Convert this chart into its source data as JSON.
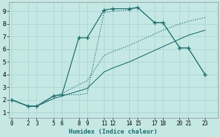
{
  "xlabel": "Humidex (Indice chaleur)",
  "bg_color": "#c5e8e5",
  "grid_color": "#a8d5d0",
  "line_color": "#1a6b6a",
  "xtick_vals": [
    0,
    2,
    3,
    5,
    6,
    8,
    9,
    11,
    12,
    14,
    15,
    17,
    18,
    20,
    21,
    23
  ],
  "ytick_vals": [
    1,
    2,
    3,
    4,
    5,
    6,
    7,
    8,
    9
  ],
  "xlim": [
    -0.3,
    24.5
  ],
  "ylim": [
    0.6,
    9.7
  ],
  "lines": [
    {
      "x": [
        0,
        2,
        3,
        5,
        6,
        8,
        9,
        11,
        12,
        14,
        15,
        17,
        18,
        20,
        21,
        23
      ],
      "y": [
        2.0,
        1.5,
        1.5,
        2.3,
        2.5,
        3.2,
        3.5,
        5.5,
        5.8,
        6.3,
        6.6,
        7.2,
        7.5,
        8.0,
        8.2,
        8.5
      ],
      "style": ":",
      "marker": null,
      "lw": 0.9,
      "ms": 0
    },
    {
      "x": [
        0,
        2,
        3,
        5,
        6,
        8,
        9,
        11,
        12,
        14,
        15,
        17,
        18,
        20,
        21,
        23
      ],
      "y": [
        2.0,
        1.5,
        1.5,
        2.1,
        2.3,
        2.7,
        2.9,
        4.2,
        4.5,
        5.0,
        5.3,
        5.9,
        6.2,
        6.8,
        7.1,
        7.5
      ],
      "style": "-",
      "marker": null,
      "lw": 0.8,
      "ms": 0
    },
    {
      "x": [
        0,
        2,
        3,
        5,
        6,
        8,
        9,
        11,
        12,
        14,
        15,
        17,
        18,
        20,
        21,
        23
      ],
      "y": [
        2.0,
        1.5,
        1.5,
        2.3,
        2.4,
        6.9,
        6.9,
        9.1,
        9.2,
        9.2,
        9.3,
        8.1,
        8.1,
        6.1,
        6.1,
        4.0
      ],
      "style": "-",
      "marker": "+",
      "lw": 0.9,
      "ms": 4
    },
    {
      "x": [
        0,
        2,
        3,
        5,
        6,
        8,
        9,
        11,
        12,
        14,
        15,
        17,
        18,
        20,
        21,
        23
      ],
      "y": [
        2.0,
        1.5,
        1.5,
        2.3,
        2.4,
        2.4,
        2.5,
        8.9,
        9.0,
        9.1,
        9.3,
        8.1,
        8.1,
        6.1,
        6.1,
        4.0
      ],
      "style": ":",
      "marker": null,
      "lw": 0.9,
      "ms": 0
    }
  ]
}
